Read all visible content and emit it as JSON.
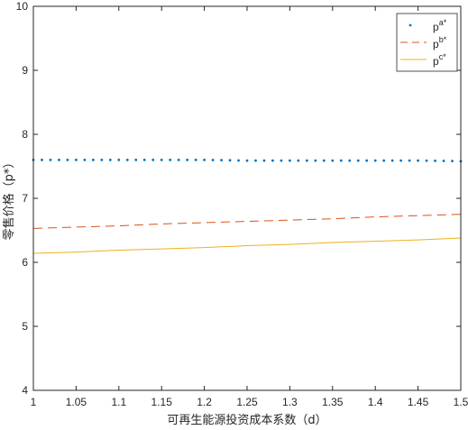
{
  "chart_data": {
    "type": "line",
    "title": "",
    "xlabel": "可再生能源投资成本系数（d）",
    "ylabel": "零售价格（p*）",
    "xlim": [
      1,
      1.5
    ],
    "ylim": [
      4,
      10
    ],
    "x_ticks": [
      1,
      1.05,
      1.1,
      1.15,
      1.2,
      1.25,
      1.3,
      1.35,
      1.4,
      1.45,
      1.5
    ],
    "x_tick_labels": [
      "1",
      "1.05",
      "1.1",
      "1.15",
      "1.2",
      "1.25",
      "1.3",
      "1.35",
      "1.4",
      "1.45",
      "1.5"
    ],
    "y_ticks": [
      4,
      5,
      6,
      7,
      8,
      9,
      10
    ],
    "y_tick_labels": [
      "4",
      "5",
      "6",
      "7",
      "8",
      "9",
      "10"
    ],
    "grid": false,
    "legend_position": "top-right",
    "series": [
      {
        "name": "p",
        "name_sup": "a*",
        "style": "dotted",
        "color": "#0072BD",
        "x": [
          1.0,
          1.05,
          1.1,
          1.15,
          1.2,
          1.25,
          1.3,
          1.35,
          1.4,
          1.45,
          1.5
        ],
        "values": [
          7.6,
          7.6,
          7.6,
          7.6,
          7.6,
          7.59,
          7.59,
          7.59,
          7.59,
          7.59,
          7.58
        ]
      },
      {
        "name": "p",
        "name_sup": "b*",
        "style": "dashed",
        "color": "#D95319",
        "x": [
          1.0,
          1.05,
          1.1,
          1.15,
          1.2,
          1.25,
          1.3,
          1.35,
          1.4,
          1.45,
          1.5
        ],
        "values": [
          6.53,
          6.55,
          6.57,
          6.6,
          6.62,
          6.64,
          6.66,
          6.68,
          6.71,
          6.73,
          6.75
        ]
      },
      {
        "name": "p",
        "name_sup": "c*",
        "style": "solid",
        "color": "#EDB120",
        "x": [
          1.0,
          1.05,
          1.1,
          1.15,
          1.2,
          1.25,
          1.3,
          1.35,
          1.4,
          1.45,
          1.5
        ],
        "values": [
          6.14,
          6.16,
          6.19,
          6.21,
          6.23,
          6.26,
          6.28,
          6.31,
          6.33,
          6.35,
          6.38
        ]
      }
    ]
  }
}
